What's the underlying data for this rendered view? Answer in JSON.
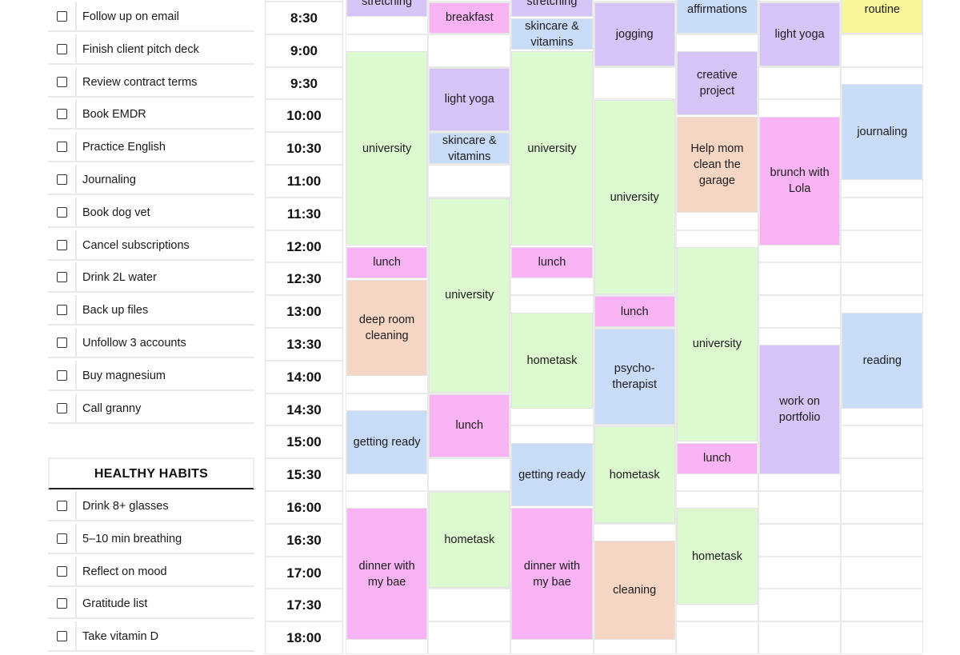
{
  "todo": {
    "items": [
      "Follow up on email",
      "Finish client pitch deck",
      "Review contract terms",
      "Book EMDR",
      "Practice English",
      "Journaling",
      "Book dog vet",
      "Cancel subscriptions",
      "Drink 2L water",
      "Back up files",
      "Unfollow 3 accounts",
      "Buy magnesium",
      "Call granny"
    ]
  },
  "habits": {
    "title": "HEALTHY HABITS",
    "items": [
      "Drink 8+ glasses",
      "5–10 min breathing",
      "Reflect on mood",
      "Gratitude list",
      "Take vitamin D"
    ]
  },
  "schedule": {
    "times": [
      "8:30",
      "9:00",
      "9:30",
      "10:00",
      "10:30",
      "11:00",
      "11:30",
      "12:00",
      "12:30",
      "13:00",
      "13:30",
      "14:00",
      "14:30",
      "15:00",
      "15:30",
      "16:00",
      "16:30",
      "17:00",
      "17:30",
      "18:00"
    ],
    "colors": {
      "purple": "#d7c4f7",
      "pink": "#f7b3f3",
      "green": "#ddf9cf",
      "peach": "#f5d6c4",
      "blue": "#c8dcf8",
      "yellow": "#f9f59a"
    },
    "days": [
      {
        "events": [
          {
            "label": "stretching",
            "color": "purple",
            "start": -0.5,
            "span": 1
          },
          {
            "label": "university",
            "color": "green",
            "start": 1.5,
            "span": 6
          },
          {
            "label": "lunch",
            "color": "pink",
            "start": 7.5,
            "span": 1
          },
          {
            "label": "deep room cleaning",
            "color": "peach",
            "start": 8.5,
            "span": 3
          },
          {
            "label": "getting ready",
            "color": "blue",
            "start": 12.5,
            "span": 2
          },
          {
            "label": "dinner with my bae",
            "color": "pink",
            "start": 15.5,
            "span": 4.5
          }
        ]
      },
      {
        "events": [
          {
            "label": "breakfast",
            "color": "pink",
            "start": 0,
            "span": 1
          },
          {
            "label": "light yoga",
            "color": "purple",
            "start": 2,
            "span": 2
          },
          {
            "label": "skincare & vitamins",
            "color": "blue",
            "start": 4,
            "span": 1
          },
          {
            "label": "university",
            "color": "green",
            "start": 6,
            "span": 6
          },
          {
            "label": "lunch",
            "color": "pink",
            "start": 12,
            "span": 2
          },
          {
            "label": "hometask",
            "color": "green",
            "start": 15,
            "span": 3
          }
        ]
      },
      {
        "events": [
          {
            "label": "stretching",
            "color": "purple",
            "start": -0.5,
            "span": 1
          },
          {
            "label": "skincare & vitamins",
            "color": "blue",
            "start": 0.5,
            "span": 1
          },
          {
            "label": "university",
            "color": "green",
            "start": 1.5,
            "span": 6
          },
          {
            "label": "lunch",
            "color": "pink",
            "start": 7.5,
            "span": 1
          },
          {
            "label": "hometask",
            "color": "green",
            "start": 9.5,
            "span": 3
          },
          {
            "label": "getting ready",
            "color": "blue",
            "start": 13.5,
            "span": 2
          },
          {
            "label": "dinner with my bae",
            "color": "pink",
            "start": 15.5,
            "span": 4.5
          }
        ]
      },
      {
        "events": [
          {
            "label": "jogging",
            "color": "purple",
            "start": 0,
            "span": 2
          },
          {
            "label": "university",
            "color": "green",
            "start": 3,
            "span": 6
          },
          {
            "label": "lunch",
            "color": "pink",
            "start": 9,
            "span": 1
          },
          {
            "label": "psycho-therapist",
            "color": "blue",
            "start": 10,
            "span": 3
          },
          {
            "label": "hometask",
            "color": "green",
            "start": 13,
            "span": 3
          },
          {
            "label": "cleaning",
            "color": "peach",
            "start": 16.5,
            "span": 3.5
          }
        ]
      },
      {
        "events": [
          {
            "label": "affirmations",
            "color": "blue",
            "start": -0.5,
            "span": 1.5
          },
          {
            "label": "creative project",
            "color": "purple",
            "start": 1.5,
            "span": 2
          },
          {
            "label": "Help mom clean the garage",
            "color": "peach",
            "start": 3.5,
            "span": 3
          },
          {
            "label": "university",
            "color": "green",
            "start": 7.5,
            "span": 6
          },
          {
            "label": "lunch",
            "color": "pink",
            "start": 13.5,
            "span": 1
          },
          {
            "label": "hometask",
            "color": "green",
            "start": 15.5,
            "span": 3
          }
        ]
      },
      {
        "events": [
          {
            "label": "light yoga",
            "color": "purple",
            "start": 0,
            "span": 2
          },
          {
            "label": "brunch with Lola",
            "color": "pink",
            "start": 3.5,
            "span": 4
          },
          {
            "label": "work on portfolio",
            "color": "purple",
            "start": 10.5,
            "span": 4
          }
        ]
      },
      {
        "events": [
          {
            "label": "routine",
            "color": "yellow",
            "start": -0.5,
            "span": 1.5
          },
          {
            "label": "journaling",
            "color": "blue",
            "start": 2.5,
            "span": 3
          },
          {
            "label": "reading",
            "color": "blue",
            "start": 9.5,
            "span": 3
          }
        ]
      }
    ]
  }
}
